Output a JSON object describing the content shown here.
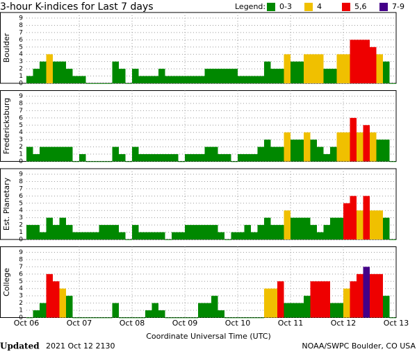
{
  "chart_data": {
    "type": "bar",
    "title": "3-hour K-indices for Last 7 days",
    "legend": {
      "label": "Legend:",
      "items": [
        {
          "label": "0-3",
          "color": "#008800"
        },
        {
          "label": "4",
          "color": "#f0c000"
        },
        {
          "label": "5,6",
          "color": "#ee0000"
        },
        {
          "label": "7-9",
          "color": "#440088"
        }
      ]
    },
    "x_ticks": [
      "Oct 06",
      "Oct 07",
      "Oct 08",
      "Oct 09",
      "Oct 10",
      "Oct 11",
      "Oct 12",
      "Oct 13"
    ],
    "x_label": "Coordinate Universal Time (UTC)",
    "grid": true,
    "panels": [
      {
        "ylabel": "Boulder",
        "ylim": [
          0,
          9
        ],
        "yticks": [
          0,
          1,
          2,
          3,
          4,
          5,
          6,
          7,
          8,
          9
        ],
        "values": [
          1,
          2,
          3,
          4,
          3,
          3,
          2,
          1,
          1,
          0,
          0,
          0,
          0,
          3,
          2,
          0,
          2,
          1,
          1,
          1,
          2,
          1,
          1,
          1,
          1,
          1,
          1,
          2,
          2,
          2,
          2,
          2,
          1,
          1,
          1,
          1,
          3,
          2,
          2,
          4,
          3,
          3,
          4,
          4,
          4,
          2,
          2,
          4,
          4,
          6,
          6,
          6,
          5,
          4,
          3,
          0
        ]
      },
      {
        "ylabel": "Fredericksburg",
        "ylim": [
          0,
          9
        ],
        "yticks": [
          0,
          1,
          2,
          3,
          4,
          5,
          6,
          7,
          8,
          9
        ],
        "values": [
          2,
          1,
          2,
          2,
          2,
          2,
          2,
          0,
          1,
          0,
          0,
          0,
          0,
          2,
          1,
          0,
          2,
          1,
          1,
          1,
          1,
          1,
          1,
          0,
          1,
          1,
          1,
          2,
          2,
          1,
          1,
          0,
          1,
          1,
          1,
          2,
          3,
          2,
          2,
          4,
          3,
          3,
          4,
          3,
          2,
          1,
          2,
          4,
          4,
          6,
          4,
          5,
          4,
          3,
          3,
          0
        ]
      },
      {
        "ylabel": "Est. Planetary",
        "ylim": [
          0,
          9
        ],
        "yticks": [
          0,
          1,
          2,
          3,
          4,
          5,
          6,
          7,
          8,
          9
        ],
        "values": [
          2,
          2,
          1,
          3,
          2,
          3,
          2,
          1,
          1,
          1,
          1,
          2,
          2,
          2,
          1,
          0,
          2,
          1,
          1,
          1,
          1,
          0,
          1,
          1,
          2,
          2,
          2,
          2,
          2,
          1,
          0,
          1,
          1,
          2,
          1,
          2,
          3,
          2,
          2,
          4,
          3,
          3,
          3,
          2,
          1,
          2,
          3,
          3,
          5,
          6,
          4,
          6,
          4,
          4,
          3,
          0
        ]
      },
      {
        "ylabel": "College",
        "ylim": [
          0,
          9
        ],
        "yticks": [
          0,
          1,
          2,
          3,
          4,
          5,
          6,
          7,
          8,
          9
        ],
        "values": [
          0,
          1,
          2,
          6,
          5,
          4,
          3,
          0,
          0,
          0,
          0,
          0,
          0,
          2,
          0,
          0,
          0,
          0,
          1,
          2,
          1,
          0,
          0,
          0,
          0,
          0,
          2,
          2,
          3,
          1,
          0,
          0,
          0,
          0,
          0,
          0,
          4,
          4,
          5,
          2,
          2,
          2,
          3,
          5,
          5,
          5,
          2,
          2,
          4,
          5,
          6,
          7,
          6,
          6,
          3,
          0
        ]
      }
    ],
    "footer": {
      "updated_label": "Updated",
      "updated": "2021 Oct 12 2130",
      "source": "NOAA/SWPC Boulder, CO USA"
    }
  }
}
